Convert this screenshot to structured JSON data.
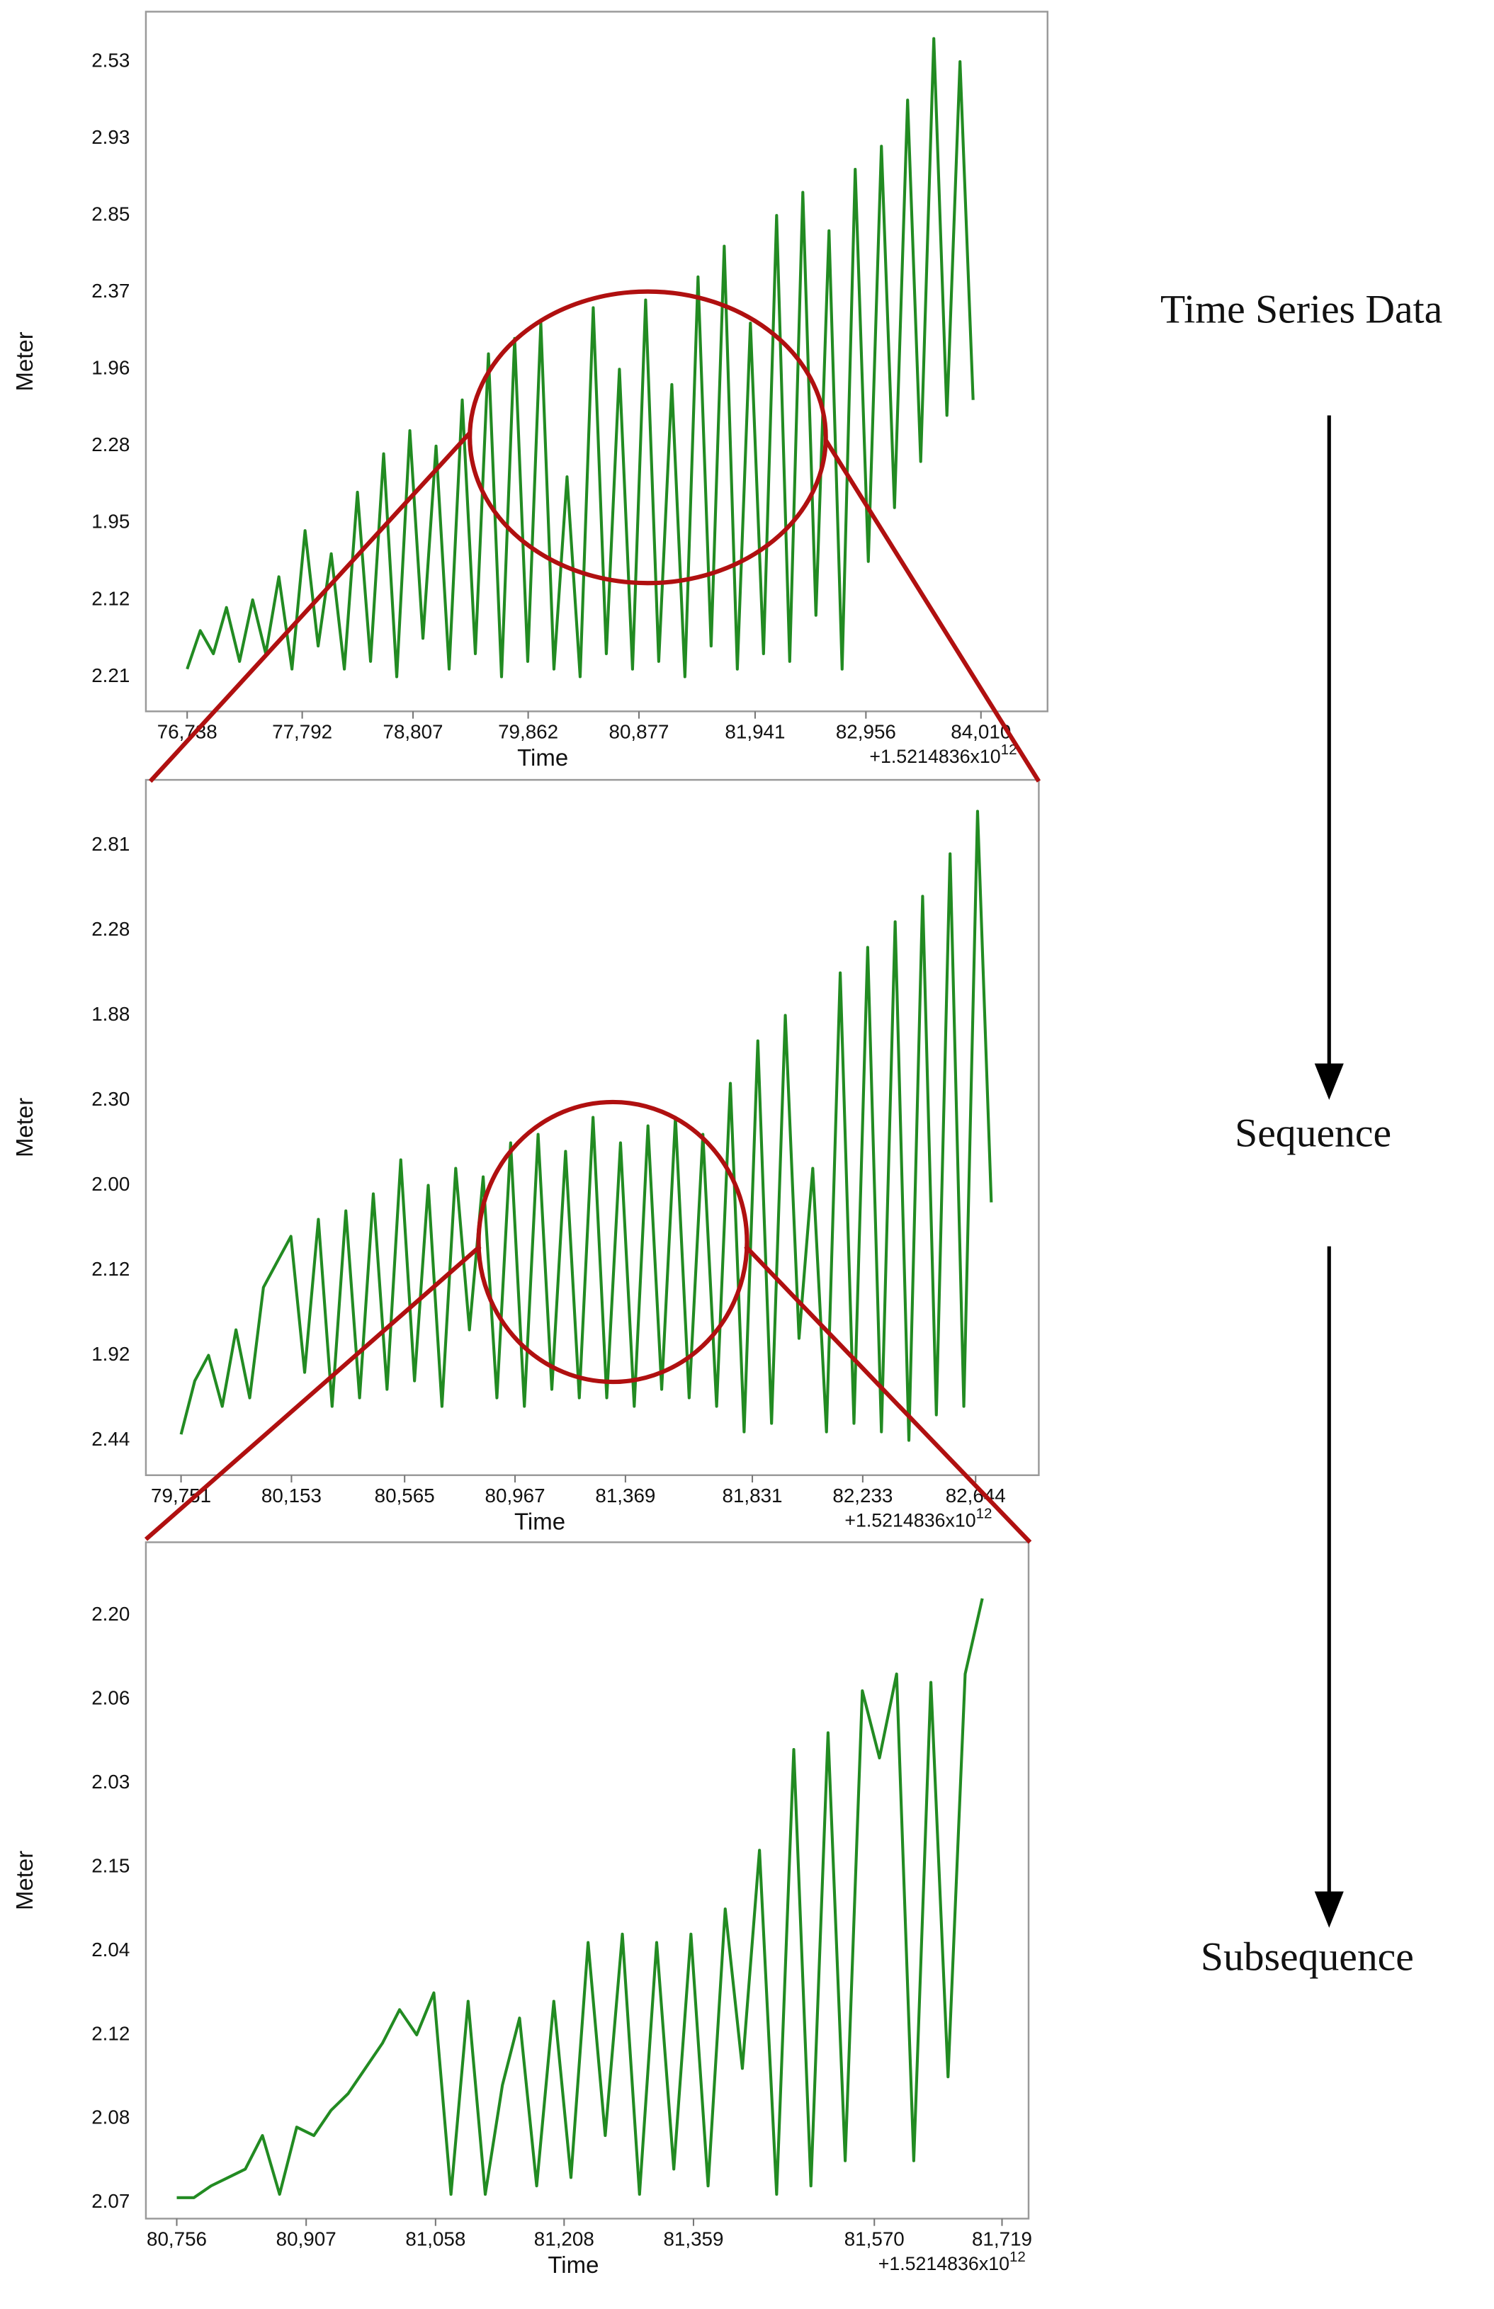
{
  "chart_data": [
    {
      "type": "line",
      "color": "#228b22",
      "xlabel": "Time",
      "ylabel": "Meter",
      "x_offset": "+1.5214836x10",
      "x_offset_exponent": "12",
      "y_labels": [
        "2.21",
        "2.12",
        "1.95",
        "2.28",
        "1.96",
        "2.37",
        "2.85",
        "2.93",
        "2.53"
      ],
      "ylim": [
        -0.45,
        8.65
      ],
      "xlim": [
        76360,
        84620
      ],
      "xticks": [
        {
          "value": 76738,
          "label": "76,738"
        },
        {
          "value": 77792,
          "label": "77,792"
        },
        {
          "value": 78807,
          "label": "78,807"
        },
        {
          "value": 79862,
          "label": "79,862"
        },
        {
          "value": 80877,
          "label": "80,877"
        },
        {
          "value": 81941,
          "label": "81,941"
        },
        {
          "value": 82956,
          "label": "82,956"
        },
        {
          "value": 84010,
          "label": "84,010"
        }
      ],
      "x": [
        76738,
        76858,
        76978,
        77098,
        77218,
        77338,
        77458,
        77578,
        77698,
        77818,
        77938,
        78058,
        78178,
        78298,
        78418,
        78538,
        78658,
        78778,
        78898,
        79018,
        79138,
        79258,
        79378,
        79498,
        79618,
        79738,
        79858,
        79978,
        80098,
        80218,
        80338,
        80458,
        80578,
        80698,
        80818,
        80938,
        81058,
        81178,
        81298,
        81418,
        81538,
        81658,
        81778,
        81898,
        82018,
        82138,
        82258,
        82378,
        82498,
        82618,
        82738,
        82858,
        82978,
        83098,
        83218,
        83338,
        83458,
        83578,
        83698,
        83818,
        83938
      ],
      "values": [
        0.1,
        0.6,
        0.3,
        0.9,
        0.2,
        1.0,
        0.3,
        1.3,
        0.1,
        1.9,
        0.4,
        1.6,
        0.1,
        2.4,
        0.2,
        2.9,
        0.0,
        3.2,
        0.5,
        3.0,
        0.1,
        3.6,
        0.3,
        4.2,
        0.0,
        4.4,
        0.2,
        4.6,
        0.1,
        2.6,
        0.0,
        4.8,
        0.3,
        4.0,
        0.1,
        4.9,
        0.2,
        3.8,
        0.0,
        5.2,
        0.4,
        5.6,
        0.1,
        4.6,
        0.3,
        6.0,
        0.2,
        6.3,
        0.8,
        5.8,
        0.1,
        6.6,
        1.5,
        6.9,
        2.2,
        7.5,
        2.8,
        8.3,
        3.4,
        8.0,
        3.6
      ]
    },
    {
      "type": "line",
      "color": "#228b22",
      "xlabel": "Time",
      "ylabel": "Meter",
      "x_offset": "+1.5214836x10",
      "x_offset_exponent": "12",
      "y_labels": [
        "2.44",
        "1.92",
        "2.12",
        "2.00",
        "2.30",
        "1.88",
        "2.28",
        "2.81"
      ],
      "ylim": [
        -0.41,
        7.77
      ],
      "xlim": [
        79623,
        82874
      ],
      "xticks": [
        {
          "value": 79751,
          "label": "79,751"
        },
        {
          "value": 80153,
          "label": "80,153"
        },
        {
          "value": 80565,
          "label": "80,565"
        },
        {
          "value": 80967,
          "label": "80,967"
        },
        {
          "value": 81369,
          "label": "81,369"
        },
        {
          "value": 81831,
          "label": "81,831"
        },
        {
          "value": 82233,
          "label": "82,233"
        },
        {
          "value": 82644,
          "label": "82,644"
        }
      ],
      "x": [
        79751,
        79801,
        79851,
        79901,
        79951,
        80001,
        80051,
        80101,
        80151,
        80201,
        80251,
        80301,
        80351,
        80401,
        80451,
        80501,
        80551,
        80601,
        80651,
        80701,
        80751,
        80801,
        80851,
        80901,
        80951,
        81001,
        81051,
        81101,
        81151,
        81201,
        81251,
        81301,
        81351,
        81401,
        81451,
        81501,
        81551,
        81601,
        81651,
        81701,
        81751,
        81801,
        81851,
        81901,
        81951,
        82001,
        82051,
        82101,
        82151,
        82201,
        82251,
        82301,
        82351,
        82401,
        82451,
        82501,
        82551,
        82601,
        82651,
        82701
      ],
      "values": [
        0.07,
        0.7,
        1.0,
        0.4,
        1.3,
        0.5,
        1.8,
        2.1,
        2.4,
        0.8,
        2.6,
        0.4,
        2.7,
        0.5,
        2.9,
        0.6,
        3.3,
        0.7,
        3.0,
        0.4,
        3.2,
        1.3,
        3.1,
        0.5,
        3.5,
        0.4,
        3.6,
        0.6,
        3.4,
        0.5,
        3.8,
        0.5,
        3.5,
        0.4,
        3.7,
        0.6,
        3.8,
        0.5,
        3.6,
        0.4,
        4.2,
        0.1,
        4.7,
        0.2,
        5.0,
        1.2,
        3.2,
        0.1,
        5.5,
        0.2,
        5.8,
        0.1,
        6.1,
        0.0,
        6.4,
        0.3,
        6.9,
        0.4,
        7.4,
        2.8
      ]
    },
    {
      "type": "line",
      "color": "#228b22",
      "xlabel": "Time",
      "ylabel": "Meter",
      "x_offset": "+1.5214836x10",
      "x_offset_exponent": "12",
      "y_labels": [
        "2.07",
        "2.08",
        "2.12",
        "2.04",
        "2.15",
        "2.03",
        "2.06",
        "2.20"
      ],
      "ylim": [
        -0.19,
        7.87
      ],
      "xlim": [
        80720,
        81750
      ],
      "xticks": [
        {
          "value": 80756,
          "label": "80,756"
        },
        {
          "value": 80907,
          "label": "80,907"
        },
        {
          "value": 81058,
          "label": "81,058"
        },
        {
          "value": 81208,
          "label": "81,208"
        },
        {
          "value": 81359,
          "label": "81,359"
        },
        {
          "value": 81570,
          "label": "81,570"
        },
        {
          "value": 81719,
          "label": "81,719"
        }
      ],
      "x": [
        80756,
        80776,
        80796,
        80816,
        80836,
        80856,
        80876,
        80896,
        80916,
        80936,
        80956,
        80976,
        80996,
        81016,
        81036,
        81056,
        81076,
        81096,
        81116,
        81136,
        81156,
        81176,
        81196,
        81216,
        81236,
        81256,
        81276,
        81296,
        81316,
        81336,
        81356,
        81376,
        81396,
        81416,
        81436,
        81456,
        81476,
        81496,
        81516,
        81536,
        81556,
        81576,
        81596,
        81616,
        81636,
        81656,
        81676,
        81696
      ],
      "values": [
        0.06,
        0.06,
        0.2,
        0.3,
        0.4,
        0.8,
        0.1,
        0.9,
        0.8,
        1.1,
        1.3,
        1.6,
        1.9,
        2.3,
        2.0,
        2.5,
        0.1,
        2.4,
        0.1,
        1.4,
        2.2,
        0.2,
        2.4,
        0.3,
        3.1,
        0.8,
        3.2,
        0.1,
        3.1,
        0.4,
        3.2,
        0.2,
        3.5,
        1.6,
        4.2,
        0.1,
        5.4,
        0.2,
        5.6,
        0.5,
        6.1,
        5.3,
        6.3,
        0.5,
        6.2,
        1.5,
        6.3,
        7.2
      ]
    }
  ],
  "stages": [
    "Time Series Data",
    "Sequence",
    "Subsequence"
  ]
}
